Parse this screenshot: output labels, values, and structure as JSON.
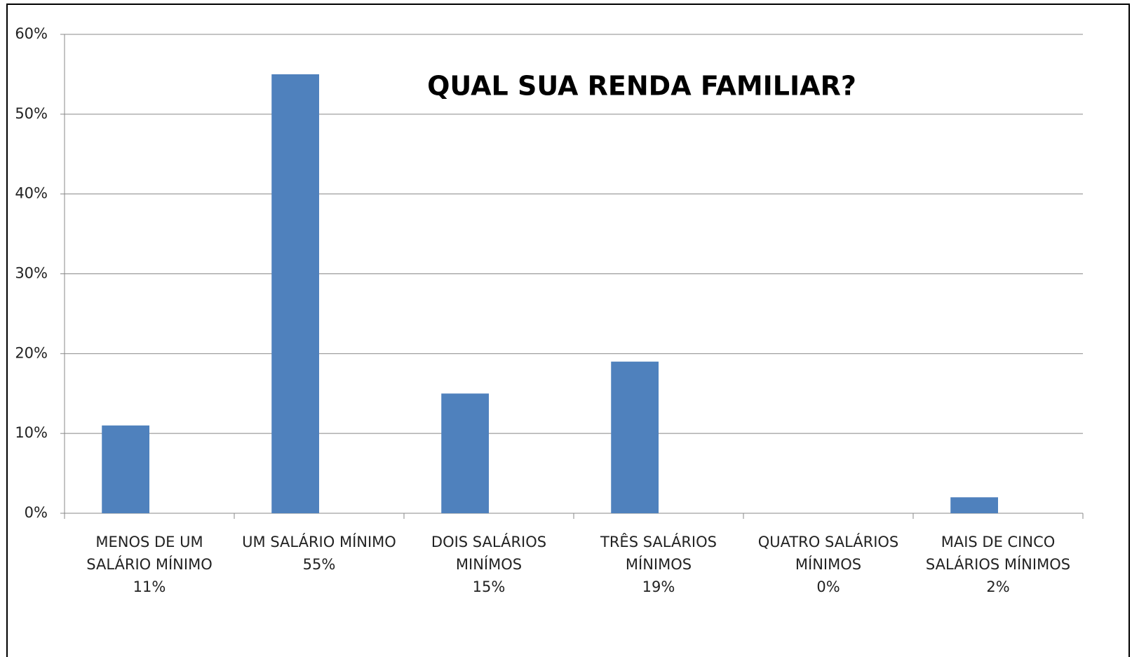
{
  "chart_data": {
    "type": "bar",
    "title": "QUAL SUA RENDA FAMILIAR?",
    "categories": [
      "MENOS DE UM SALÁRIO MÍNIMO",
      "UM SALÁRIO MÍNIMO",
      "DOIS SALÁRIOS MINÍMOS",
      "TRÊS SALÁRIOS MÍNIMOS",
      "QUATRO SALÁRIOS MÍNIMOS",
      "MAIS DE CINCO SALÁRIOS MÍNIMOS"
    ],
    "values": [
      11,
      55,
      15,
      19,
      0,
      2
    ],
    "value_labels": [
      "11%",
      "55%",
      "15%",
      "19%",
      "0%",
      "2%"
    ],
    "color": "#4f81bd",
    "ylim": [
      0,
      60
    ],
    "yticks": [
      {
        "value": 0,
        "label": "0%"
      },
      {
        "value": 10,
        "label": "10%"
      },
      {
        "value": 20,
        "label": "20%"
      },
      {
        "value": 30,
        "label": "30%"
      },
      {
        "value": 40,
        "label": "40%"
      },
      {
        "value": 50,
        "label": "50%"
      },
      {
        "value": 60,
        "label": "60%"
      }
    ],
    "grid": true
  }
}
